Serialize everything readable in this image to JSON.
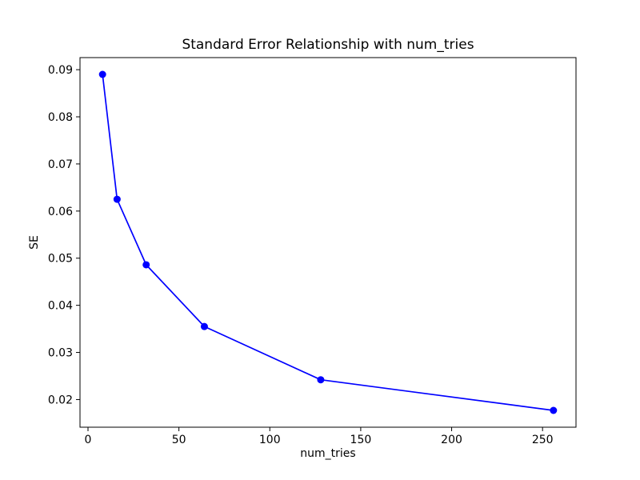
{
  "figure": {
    "background": "#ffffff",
    "text_color": "#000000",
    "spine_color": "#000000"
  },
  "chart_data": {
    "type": "line",
    "title": "Standard Error Relationship with num_tries",
    "xlabel": "num_tries",
    "ylabel": "SE",
    "x": [
      8,
      16,
      32,
      64,
      128,
      256
    ],
    "y": [
      0.089,
      0.0625,
      0.0486,
      0.0355,
      0.0242,
      0.0177
    ],
    "line_color": "#0000ff",
    "marker": "circle",
    "grid": false,
    "legend_position": "none",
    "xlim": [
      -4.4,
      268.4
    ],
    "ylim": [
      0.014135,
      0.092565
    ],
    "x_ticks": [
      0,
      50,
      100,
      150,
      200,
      250
    ],
    "x_tick_labels": [
      "0",
      "50",
      "100",
      "150",
      "200",
      "250"
    ],
    "y_ticks": [
      0.02,
      0.03,
      0.04,
      0.05,
      0.06,
      0.07,
      0.08,
      0.09
    ],
    "y_tick_labels": [
      "0.02",
      "0.03",
      "0.04",
      "0.05",
      "0.06",
      "0.07",
      "0.08",
      "0.09"
    ]
  }
}
